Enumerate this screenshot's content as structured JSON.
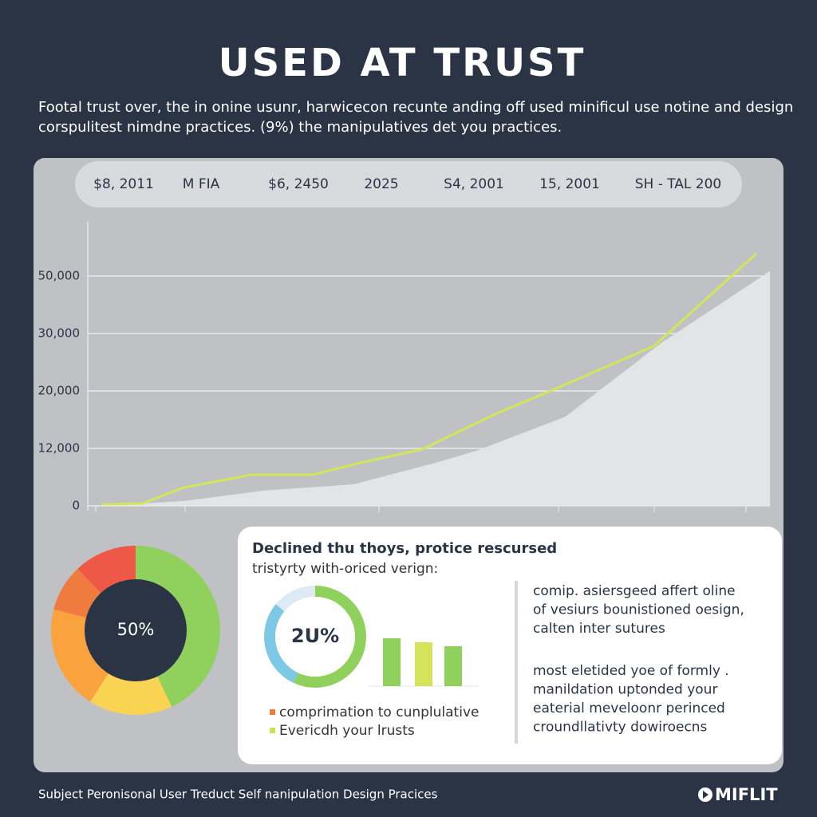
{
  "title": "USED AT TRUST",
  "subtitle": [
    "Footal trust over, the in onine usunr, harwicecon recunte anding off used minificul use notine and design",
    "corspulitest nimdne practices. (9%) the manipulatives det you practices."
  ],
  "chart_data": [
    {
      "type": "line",
      "header_labels": [
        "$8, 2011",
        "M FIA",
        "$6, 2450",
        "2025",
        "S4, 2001",
        "15, 2001",
        "SH - TAL 200"
      ],
      "xlim": [
        0,
        100
      ],
      "ylim": [
        0,
        70000
      ],
      "yticks": [
        0,
        12000,
        20000,
        30000,
        50000
      ],
      "ytick_labels": [
        "0",
        "12,000",
        "20,000",
        "30,000",
        "50,000"
      ],
      "grid": true,
      "series": [
        {
          "kind": "area",
          "color": "#e3e4e6",
          "x": [
            2,
            14,
            26,
            39,
            51,
            57,
            70,
            84,
            100
          ],
          "values": [
            0,
            1000,
            3200,
            4500,
            9000,
            11500,
            16400,
            28300,
            51700
          ]
        },
        {
          "kind": "line",
          "color": "#d3e65a",
          "x": [
            2,
            8,
            14,
            24,
            33,
            40,
            49,
            60,
            69,
            83,
            98
          ],
          "values": [
            300,
            500,
            3800,
            6500,
            6500,
            9000,
            11800,
            16900,
            20600,
            27800,
            57800
          ]
        }
      ]
    },
    {
      "type": "donut",
      "center_label": "50%",
      "values": [
        43,
        16,
        20,
        9,
        12
      ],
      "colors": [
        "#8fd15c",
        "#fad353",
        "#f9a23e",
        "#f07b3f",
        "#ef5747"
      ]
    },
    {
      "type": "donut",
      "center_label": "2U%",
      "values": [
        57,
        29,
        14
      ],
      "colors": [
        "#8fd15c",
        "#7dc8e4",
        "#dde9f3"
      ]
    },
    {
      "type": "bar",
      "values": [
        60,
        55,
        50
      ],
      "colors": [
        "#8fd15c",
        "#d4e35a",
        "#8fd15c"
      ],
      "ylim": [
        0,
        100
      ]
    }
  ],
  "card": {
    "title": "Declined thu thoys, protice rescursed",
    "subtitle": "tristyrty with-oriced verign:",
    "legend": [
      {
        "text": "comprimation to cunplulative",
        "color": "#f07b3f"
      },
      {
        "text": "Evericdh your lrusts",
        "color": "#c8e35a"
      }
    ],
    "notes": [
      [
        "comip. asiersgeed affert oline",
        "of vesiurs bounistioned oesign,",
        "calten inter sutures"
      ],
      [
        "most eletided yoe of formly .",
        "manildation uptonded your",
        "eaterial meveloonr perinced",
        "croundllativty dowiroecns"
      ]
    ]
  },
  "footer": "Subject Peronisonal User Treduct Self nanipulation Design Pracices",
  "logo": "MIFLIT"
}
